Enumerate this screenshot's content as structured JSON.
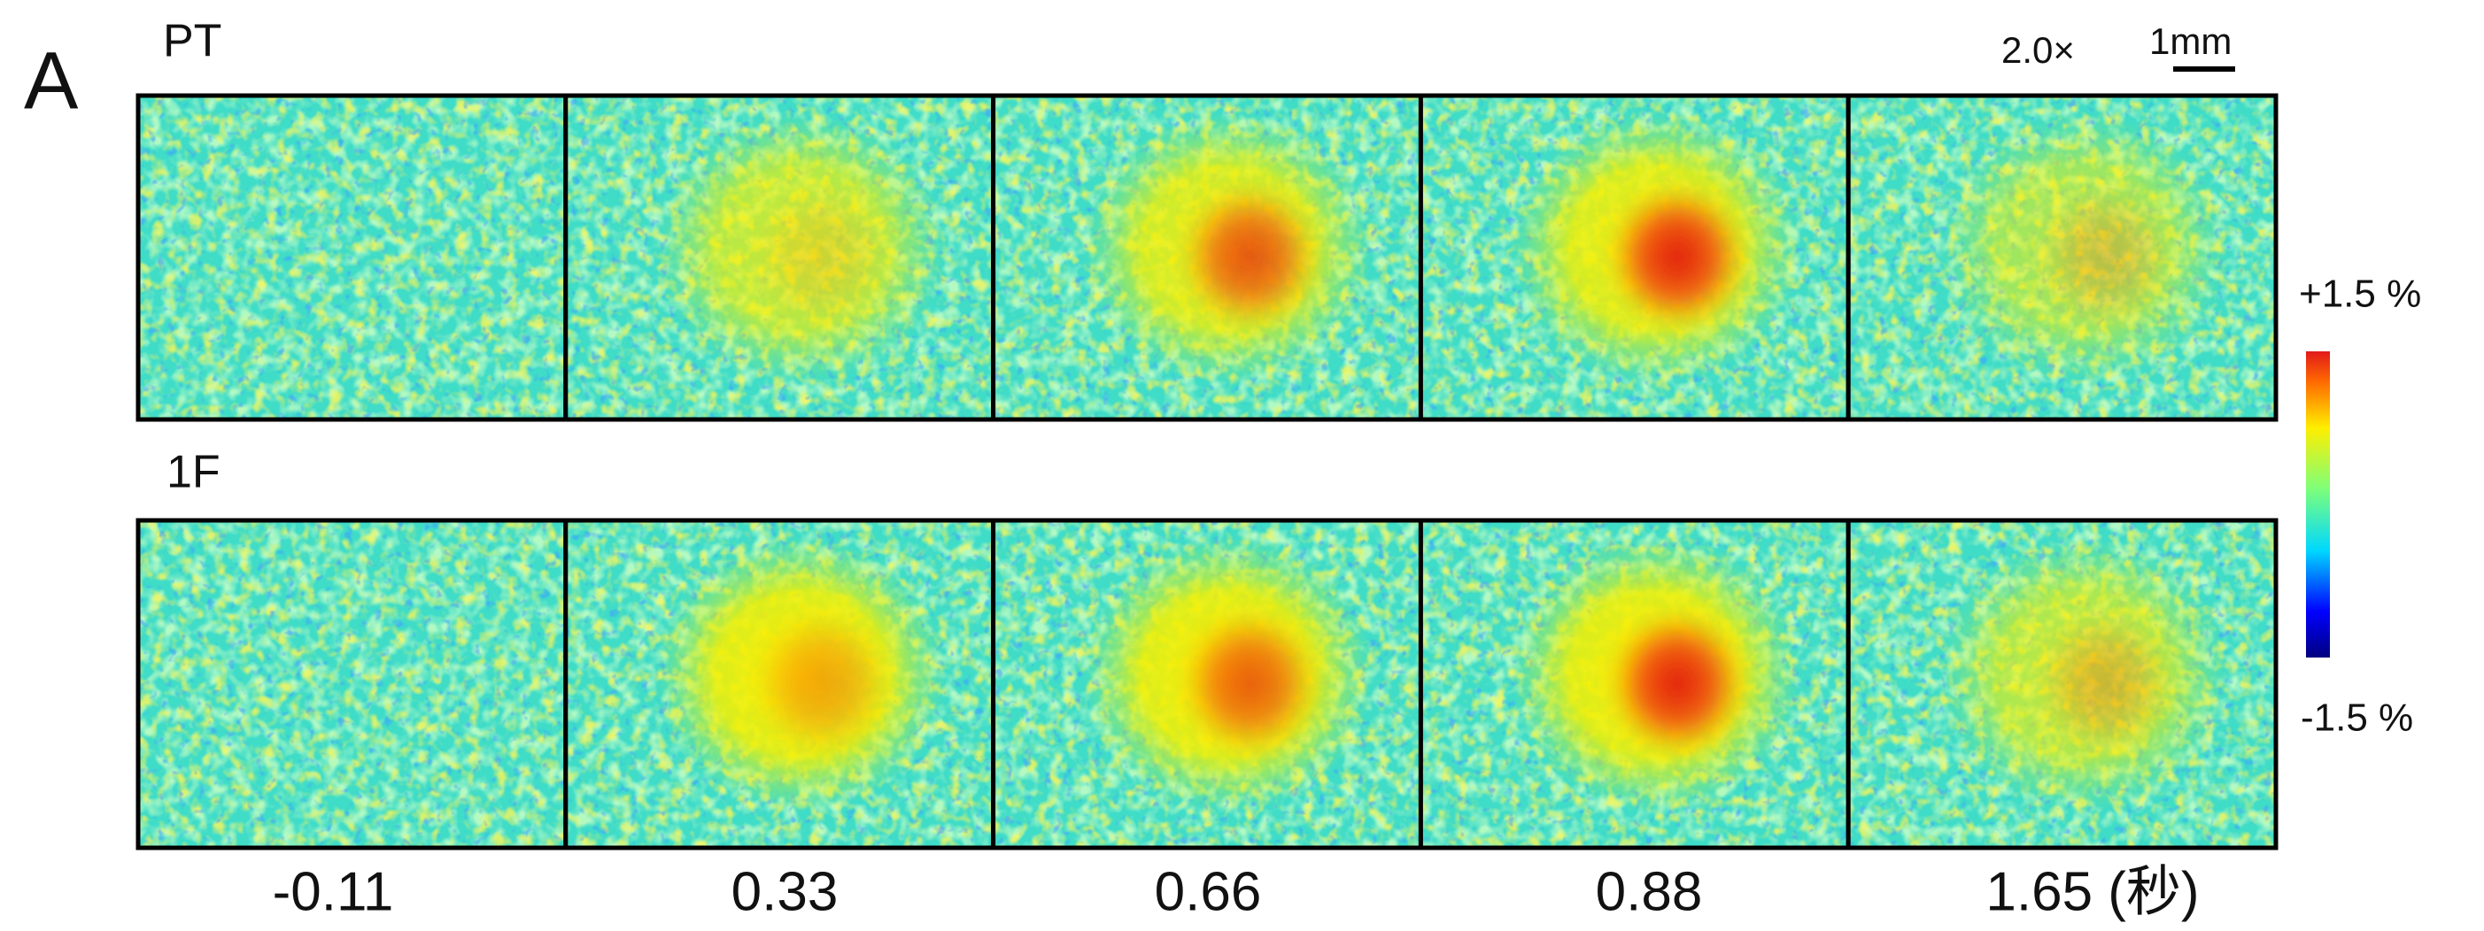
{
  "panel_label": "A",
  "magnification": "2.0×",
  "scale_bar": "1mm",
  "rows": [
    {
      "label": "PT"
    },
    {
      "label": "1F"
    }
  ],
  "time_labels": [
    "-0.11",
    "0.33",
    "0.66",
    "0.88",
    "1.65 (秒)"
  ],
  "colorbar": {
    "max_label": "+1.5 %",
    "min_label": "-1.5 %"
  }
}
